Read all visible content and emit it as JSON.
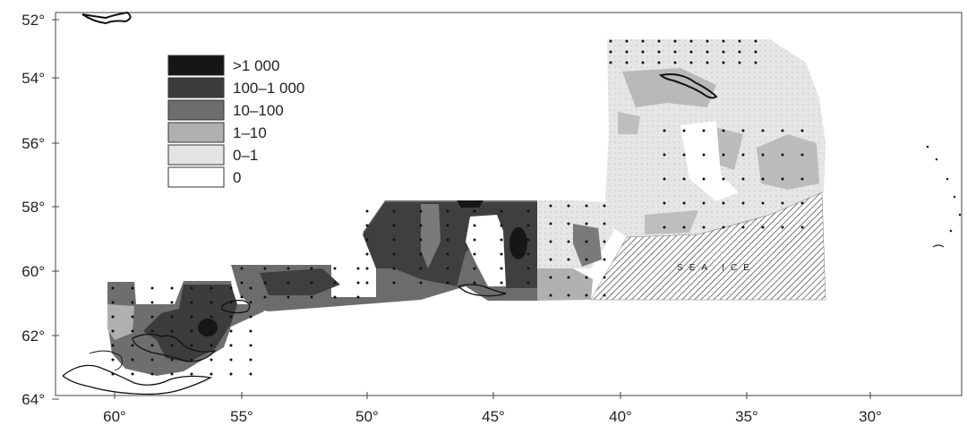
{
  "figure": {
    "axes": {
      "y_ticks": [
        "52°",
        "54°",
        "56°",
        "58°",
        "60°",
        "62°",
        "64°"
      ],
      "x_ticks": [
        "60°",
        "55°",
        "50°",
        "45°",
        "40°",
        "35°",
        "30°"
      ]
    },
    "legend": {
      "entries": [
        {
          "label": ">1 000",
          "fill": "#161616"
        },
        {
          "label": "100–1 000",
          "fill": "#3c3c3c"
        },
        {
          "label": "10–100",
          "fill": "#6e6e6e"
        },
        {
          "label": "1–10",
          "fill": "#b0b0b0"
        },
        {
          "label": "0–1",
          "fill": "#e4e4e4"
        },
        {
          "label": "0",
          "fill": "#ffffff"
        }
      ]
    },
    "ice_label": "SEA ICE",
    "colors": {
      "level_gt1000": "#161616",
      "level_100_1000": "#3c3c3c",
      "level_10_100": "#6e6e6e",
      "level_1_10": "#b0b0b0",
      "level_0_1": "#e4e4e4",
      "land_outline": "#111111",
      "frame": "#444444"
    }
  }
}
